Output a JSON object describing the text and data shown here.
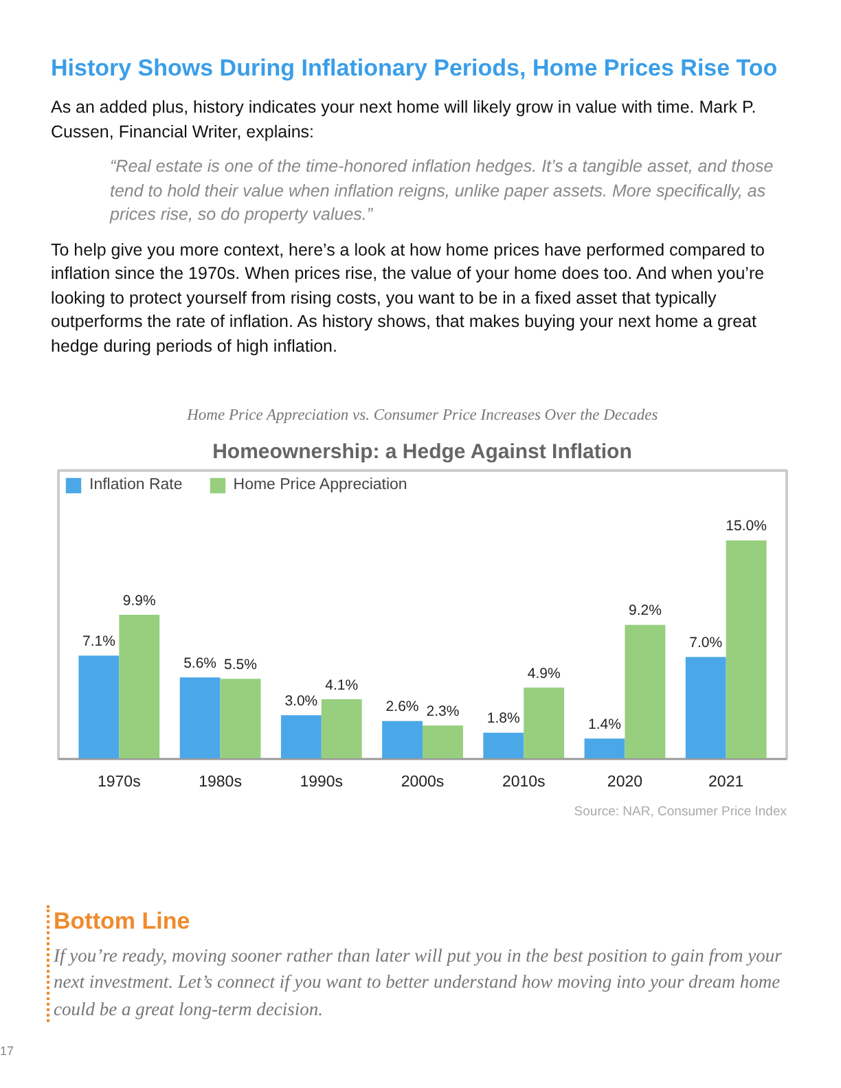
{
  "chart_data": {
    "type": "bar",
    "title": "Homeownership: a Hedge Against Inflation",
    "subtitle": "Home Price Appreciation vs. Consumer Price Increases Over the Decades",
    "categories": [
      "1970s",
      "1980s",
      "1990s",
      "2000s",
      "2010s",
      "2020",
      "2021"
    ],
    "series": [
      {
        "name": "Inflation Rate",
        "color": "#4ba8e8",
        "values": [
          7.1,
          5.6,
          3.0,
          2.6,
          1.8,
          1.4,
          7.0
        ],
        "value_labels": [
          "7.1%",
          "5.6%",
          "3.0%",
          "2.6%",
          "1.8%",
          "1.4%",
          "7.0%"
        ]
      },
      {
        "name": "Home Price Appreciation",
        "color": "#97cf7e",
        "values": [
          9.9,
          5.5,
          4.1,
          2.3,
          4.9,
          9.2,
          15.0
        ],
        "value_labels": [
          "9.9%",
          "5.5%",
          "4.1%",
          "2.3%",
          "4.9%",
          "9.2%",
          "15.0%"
        ]
      }
    ],
    "legend": "top left",
    "grid": false,
    "annotations": [
      "History Shows During Inflationary Periods, Home Prices Rise Too",
      "As an added plus, history indicates your next home will likely grow in value with time. Mark P. Cussen, Financial Writer, explains:",
      "“Real estate is one of the time-honored inflation hedges. It’s a tangible asset, and those tend to hold their value when inflation reigns, unlike paper assets. More specifically, as prices rise, so do property values.”",
      "To help give you more context, here’s a look at how home prices have performed compared to inflation since the 1970s. When prices rise, the value of your home does too. And when you’re looking to protect yourself from rising costs, you want to be in a fixed asset that typically outperforms the rate of inflation. As history shows, that makes buying your next home a great hedge during periods of high inflation.",
      "Source: NAR, Consumer Price Index",
      "Bottom Line",
      "If you’re ready, moving sooner rather than later will put you in the best position to gain from your next investment. Let’s connect if you want to better understand how moving into your dream home could be a great long-term decision.",
      "17"
    ]
  }
}
